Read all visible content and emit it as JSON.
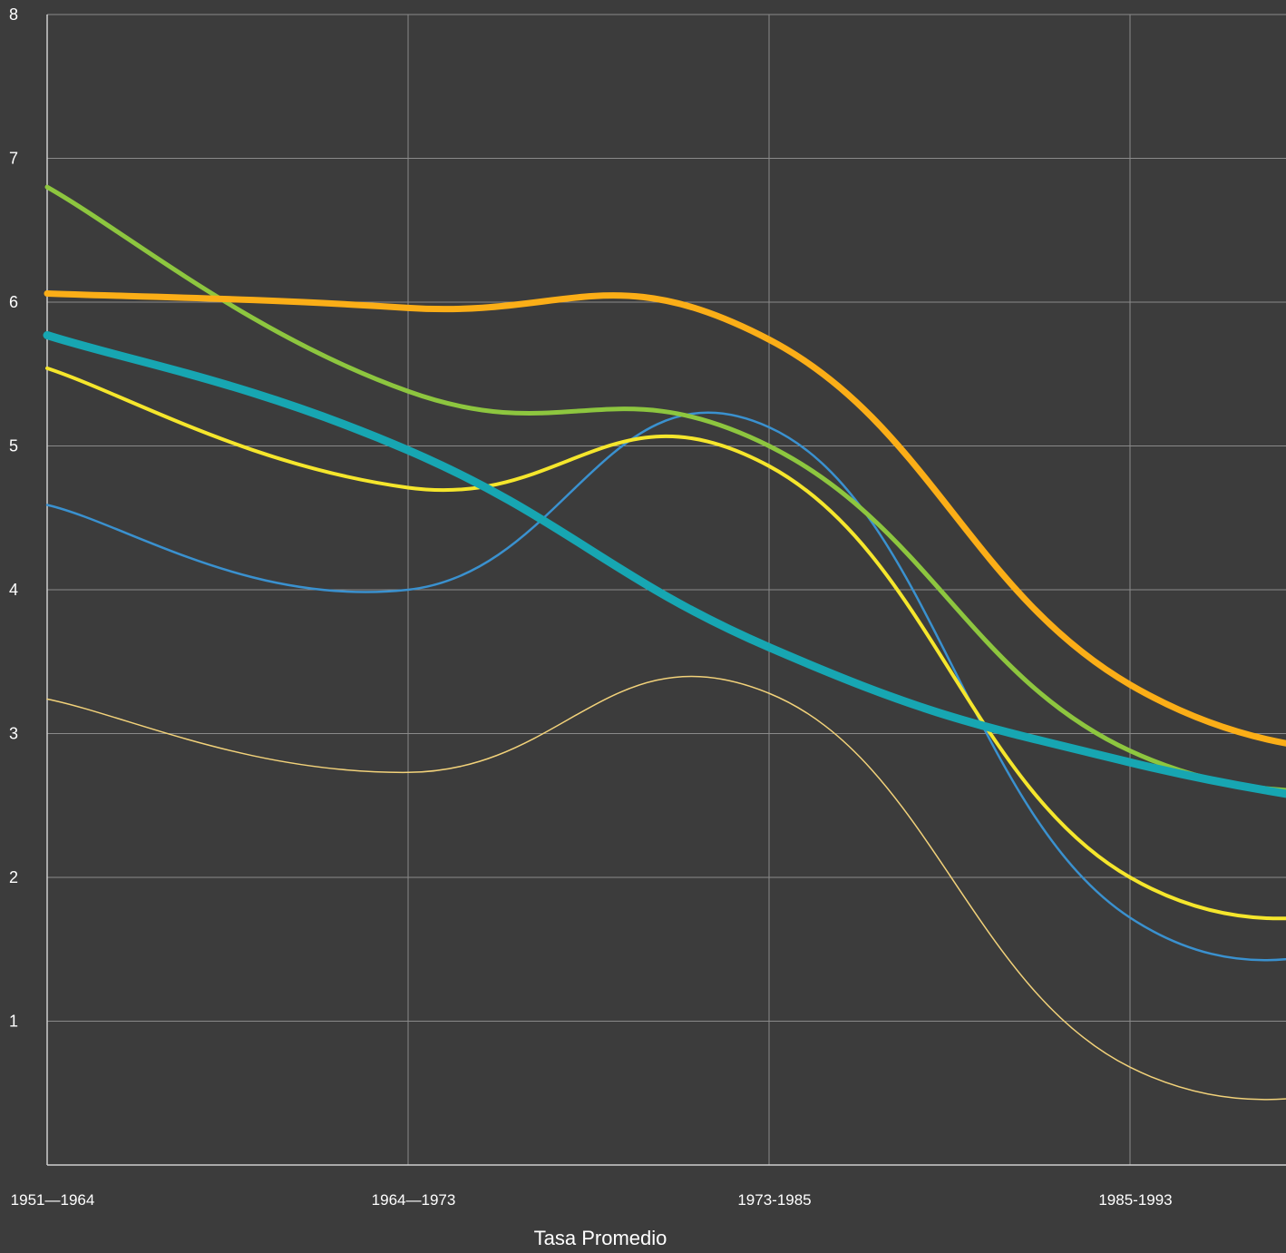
{
  "chart_data": {
    "type": "line",
    "categories": [
      "1951—1964",
      "1964—1973",
      "1973-1985",
      "1985-1993",
      ""
    ],
    "xlabel": "Tasa Promedio",
    "ylabel": "",
    "ylim": [
      0,
      8
    ],
    "yticks": [
      1,
      2,
      3,
      4,
      5,
      6,
      7,
      8
    ],
    "grid": true,
    "legend": "none",
    "series": [
      {
        "values": [
          3.24,
          2.73,
          3.28,
          0.68,
          0.78
        ],
        "color": "#f2d27a",
        "width": 1.5
      },
      {
        "values": [
          4.59,
          4.0,
          5.13,
          1.72,
          1.85
        ],
        "color": "#3a91cf",
        "width": 2.5
      },
      {
        "values": [
          5.54,
          4.71,
          4.86,
          2.0,
          1.98
        ],
        "color": "#f5e62c",
        "width": 4
      },
      {
        "values": [
          6.8,
          5.38,
          5.0,
          2.88,
          2.68
        ],
        "color": "#8dc63f",
        "width": 5
      },
      {
        "values": [
          5.77,
          4.97,
          3.6,
          2.8,
          2.38
        ],
        "color": "#17a6b2",
        "width": 9
      },
      {
        "values": [
          6.06,
          5.96,
          5.74,
          3.34,
          2.82
        ],
        "color": "#fbae17",
        "width": 7
      }
    ]
  }
}
